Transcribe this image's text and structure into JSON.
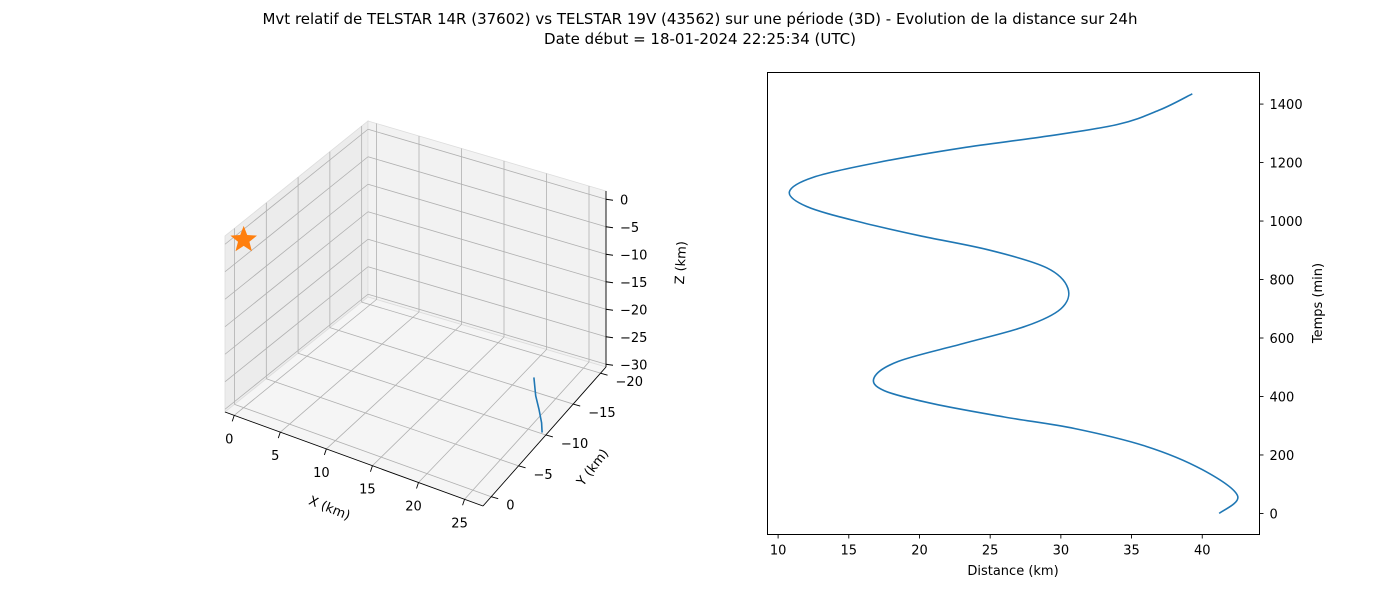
{
  "title_line1": "Mvt relatif de TELSTAR 14R (37602) vs TELSTAR 19V (43562) sur une période (3D) - Evolution de la distance sur 24h",
  "title_line2": "Date début = 18-01-2024 22:25:34 (UTC)",
  "colors": {
    "series": "#1f77b4",
    "marker": "#ff7f0e",
    "grid": "#b0b0b0",
    "pane": "#f2f2f2"
  },
  "chart_data": [
    {
      "type": "line3d",
      "xlabel": "X (km)",
      "ylabel": "Y (km)",
      "zlabel": "Z (km)",
      "x_ticks": [
        "0",
        "5",
        "10",
        "15",
        "20",
        "25"
      ],
      "y_ticks": [
        "0",
        "−5",
        "−10",
        "−15",
        "−20"
      ],
      "z_ticks": [
        "0",
        "−5",
        "−10",
        "−15",
        "−20",
        "−25",
        "−30"
      ],
      "xlim": [
        -1,
        27
      ],
      "ylim": [
        -21,
        1.5
      ],
      "zlim": [
        -30.5,
        1.5
      ],
      "grid": true,
      "trajectory": [
        {
          "x": 21.5,
          "y": -16.5,
          "z": -30
        },
        {
          "x": 23.2,
          "y": -14.2,
          "z": -30
        },
        {
          "x": 24.6,
          "y": -12.6,
          "z": -30
        },
        {
          "x": 25.9,
          "y": -11.0,
          "z": -30
        },
        {
          "x": 26.7,
          "y": -9.8,
          "z": -30
        }
      ],
      "marker_point": {
        "x": 0,
        "y": 0,
        "z": 0,
        "symbol": "star"
      }
    },
    {
      "type": "line",
      "xlabel": "Distance (km)",
      "ylabel": "Temps (min)",
      "x_ticks": [
        10,
        15,
        20,
        25,
        30,
        35,
        40
      ],
      "y_ticks": [
        0,
        200,
        400,
        600,
        800,
        1000,
        1200,
        1400
      ],
      "xlim": [
        9.25,
        44.05
      ],
      "ylim": [
        -72,
        1508
      ],
      "y_axis_side": "right",
      "grid": false,
      "series": [
        {
          "points": [
            [
              41.2,
              0
            ],
            [
              42.5,
              60
            ],
            [
              40.0,
              150
            ],
            [
              36.0,
              230
            ],
            [
              31.0,
              290
            ],
            [
              26.0,
              330
            ],
            [
              21.0,
              375
            ],
            [
              17.5,
              420
            ],
            [
              16.8,
              465
            ],
            [
              18.5,
              520
            ],
            [
              23.0,
              580
            ],
            [
              27.5,
              640
            ],
            [
              30.0,
              700
            ],
            [
              30.5,
              770
            ],
            [
              29.0,
              840
            ],
            [
              25.0,
              900
            ],
            [
              20.0,
              950
            ],
            [
              15.5,
              1000
            ],
            [
              12.0,
              1050
            ],
            [
              10.8,
              1100
            ],
            [
              12.5,
              1150
            ],
            [
              17.0,
              1200
            ],
            [
              23.0,
              1250
            ],
            [
              29.0,
              1290
            ],
            [
              34.0,
              1330
            ],
            [
              37.0,
              1380
            ],
            [
              39.3,
              1435
            ]
          ]
        }
      ]
    }
  ]
}
